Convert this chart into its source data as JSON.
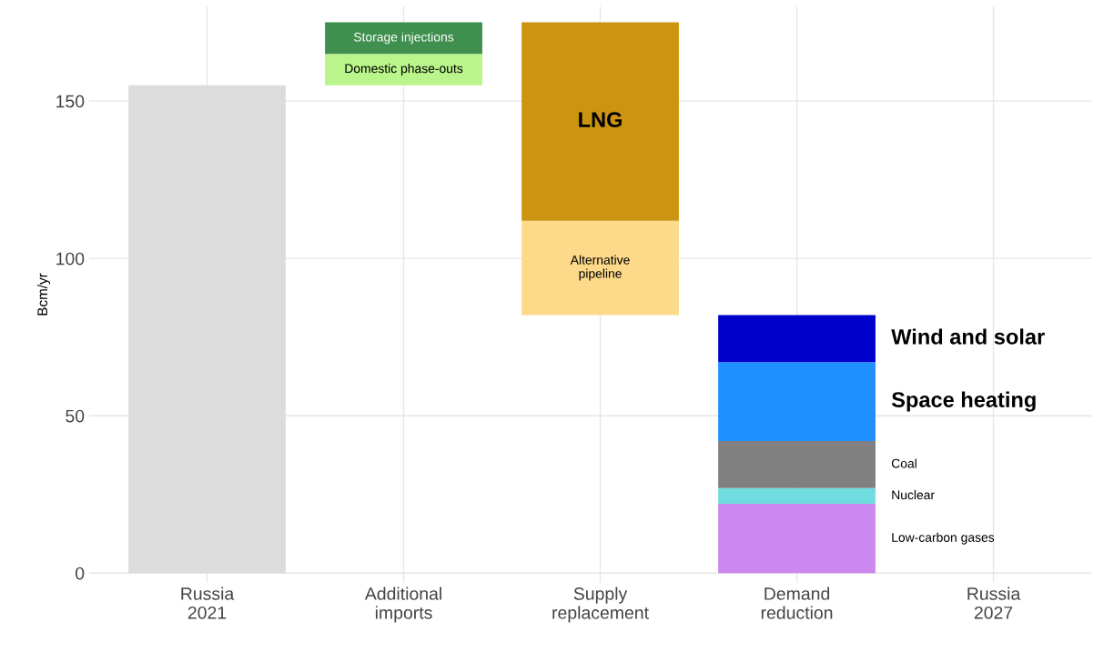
{
  "chart_data": {
    "type": "bar",
    "stacked": true,
    "ylabel": "Bcm/yr",
    "categories": [
      "Russia\n2021",
      "Additional\nimports",
      "Supply\nreplacement",
      "Demand\nreduction",
      "Russia\n2027"
    ],
    "series": [
      {
        "color": "#dcdcdc",
        "values": [
          155,
          null,
          null,
          null,
          null
        ]
      },
      {
        "name": "Domestic phase-outs",
        "color": "#b9f58a",
        "base": [
          null,
          155,
          null,
          null,
          null
        ],
        "values": [
          null,
          10,
          null,
          null,
          null
        ]
      },
      {
        "name": "Storage injections",
        "color": "#3f8f4f",
        "base": [
          null,
          165,
          null,
          null,
          null
        ],
        "values": [
          null,
          10,
          null,
          null,
          null
        ]
      },
      {
        "name": "Alternative pipeline",
        "color": "#fdd98a",
        "base": [
          null,
          null,
          82,
          null,
          null
        ],
        "values": [
          null,
          null,
          30,
          null,
          null
        ]
      },
      {
        "name": "LNG",
        "color": "#cc9410",
        "base": [
          null,
          null,
          112,
          null,
          null
        ],
        "values": [
          null,
          null,
          63,
          null,
          null
        ]
      },
      {
        "name": "Low-carbon gases",
        "color": "#cc88f0",
        "values": [
          null,
          null,
          null,
          22,
          null
        ]
      },
      {
        "name": "Nuclear",
        "color": "#6fdde0",
        "values": [
          null,
          null,
          null,
          5,
          null
        ]
      },
      {
        "name": "Coal",
        "color": "#808080",
        "values": [
          null,
          null,
          null,
          15,
          null
        ]
      },
      {
        "name": "Space heating",
        "color": "#1e90ff",
        "values": [
          null,
          null,
          null,
          25,
          null
        ]
      },
      {
        "name": "Wind and solar",
        "color": "#0000cc",
        "values": [
          null,
          null,
          null,
          15,
          null
        ]
      }
    ],
    "ylim": [
      -3,
      180
    ],
    "yticks": [
      0,
      50,
      100,
      150
    ],
    "grid": true
  }
}
